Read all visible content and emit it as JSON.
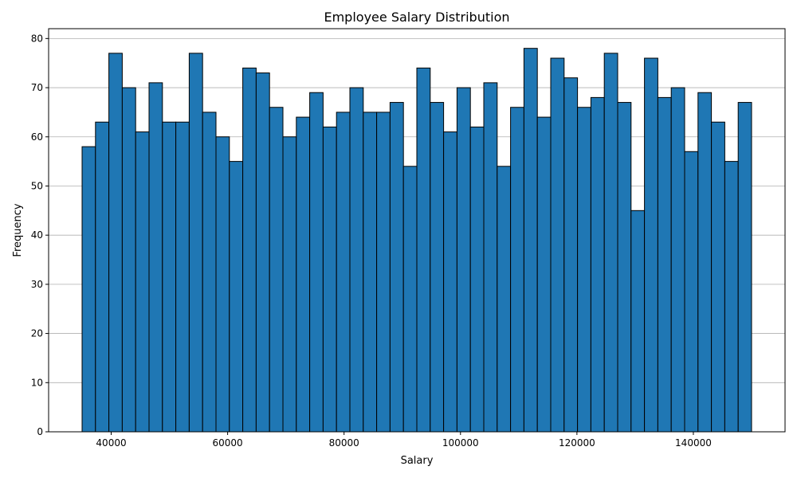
{
  "chart_data": {
    "type": "bar",
    "title": "Employee Salary Distribution",
    "xlabel": "Salary",
    "ylabel": "Frequency",
    "xlim": [
      29250,
      155750
    ],
    "ylim": [
      0,
      82
    ],
    "xticks": [
      40000,
      60000,
      80000,
      100000,
      120000,
      140000
    ],
    "yticks": [
      0,
      10,
      20,
      30,
      40,
      50,
      60,
      70,
      80
    ],
    "grid": "y",
    "bin_start": 35000,
    "bin_width": 2300,
    "values": [
      58,
      63,
      77,
      70,
      61,
      71,
      63,
      63,
      77,
      65,
      60,
      55,
      74,
      73,
      66,
      60,
      64,
      69,
      62,
      65,
      70,
      65,
      65,
      67,
      54,
      74,
      67,
      61,
      70,
      62,
      71,
      54,
      66,
      78,
      64,
      76,
      72,
      66,
      68,
      77,
      67,
      45,
      76,
      68,
      70,
      57,
      69,
      63,
      55,
      67
    ],
    "bar_color": "#1f77b4",
    "edge_color": "#000000"
  }
}
